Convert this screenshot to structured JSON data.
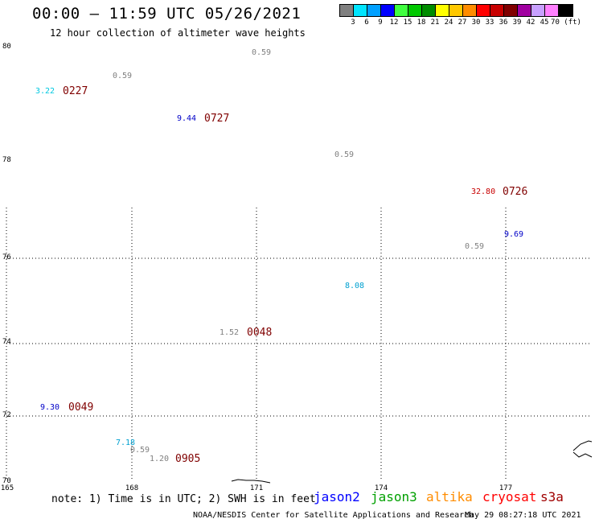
{
  "title": "00:00 – 11:59 UTC 05/26/2021",
  "subtitle": "12 hour collection of altimeter wave heights",
  "legend": {
    "colors": [
      "#808080",
      "#00e5ff",
      "#00a0ff",
      "#0000ff",
      "#40ff40",
      "#00c800",
      "#008c00",
      "#ffff00",
      "#ffc800",
      "#ff8c00",
      "#ff0000",
      "#c80000",
      "#800000",
      "#a000a0",
      "#c8a0ff",
      "#ff80ff",
      "#000000"
    ],
    "ticks": [
      "3",
      "6",
      "9",
      "12",
      "15",
      "18",
      "21",
      "24",
      "27",
      "30",
      "33",
      "36",
      "39",
      "42",
      "45",
      "70 (ft)"
    ]
  },
  "lat_labels": [
    "80",
    "78",
    "76",
    "74",
    "72",
    "70"
  ],
  "lon_labels": [
    "165",
    "168",
    "171",
    "174",
    "177"
  ],
  "observations": [
    {
      "value": "0.59",
      "color": "#808080"
    },
    {
      "value": "0.59",
      "color": "#808080"
    },
    {
      "value": "3.22",
      "color": "#00c8e0"
    },
    {
      "value": "9.44",
      "color": "#0000c8"
    },
    {
      "value": "0.59",
      "color": "#808080"
    },
    {
      "value": "32.80",
      "color": "#c80000"
    },
    {
      "value": "9.69",
      "color": "#0000c8"
    },
    {
      "value": "0.59",
      "color": "#808080"
    },
    {
      "value": "8.08",
      "color": "#00a0d0"
    },
    {
      "value": "1.52",
      "color": "#808080"
    },
    {
      "value": "9.30",
      "color": "#0000c8"
    },
    {
      "value": "7.18",
      "color": "#00a0d0"
    },
    {
      "value": "0.59",
      "color": "#808080"
    },
    {
      "value": "1.20",
      "color": "#808080"
    }
  ],
  "time_labels": [
    "0227",
    "0727",
    "0726",
    "0048",
    "0049",
    "0905"
  ],
  "note": "note: 1) Time is in UTC; 2) SWH is in feet",
  "satellites": [
    {
      "name": "jason2",
      "color": "#0000ff"
    },
    {
      "name": "jason3",
      "color": "#00a000"
    },
    {
      "name": "altika",
      "color": "#ff8c00"
    },
    {
      "name": "cryosat",
      "color": "#ff0000"
    },
    {
      "name": "s3a",
      "color": "#a00000"
    }
  ],
  "credit": "NOAA/NESDIS Center for Satellite Applications and Research",
  "timestamp": "May 29 08:27:18 UTC 2021"
}
